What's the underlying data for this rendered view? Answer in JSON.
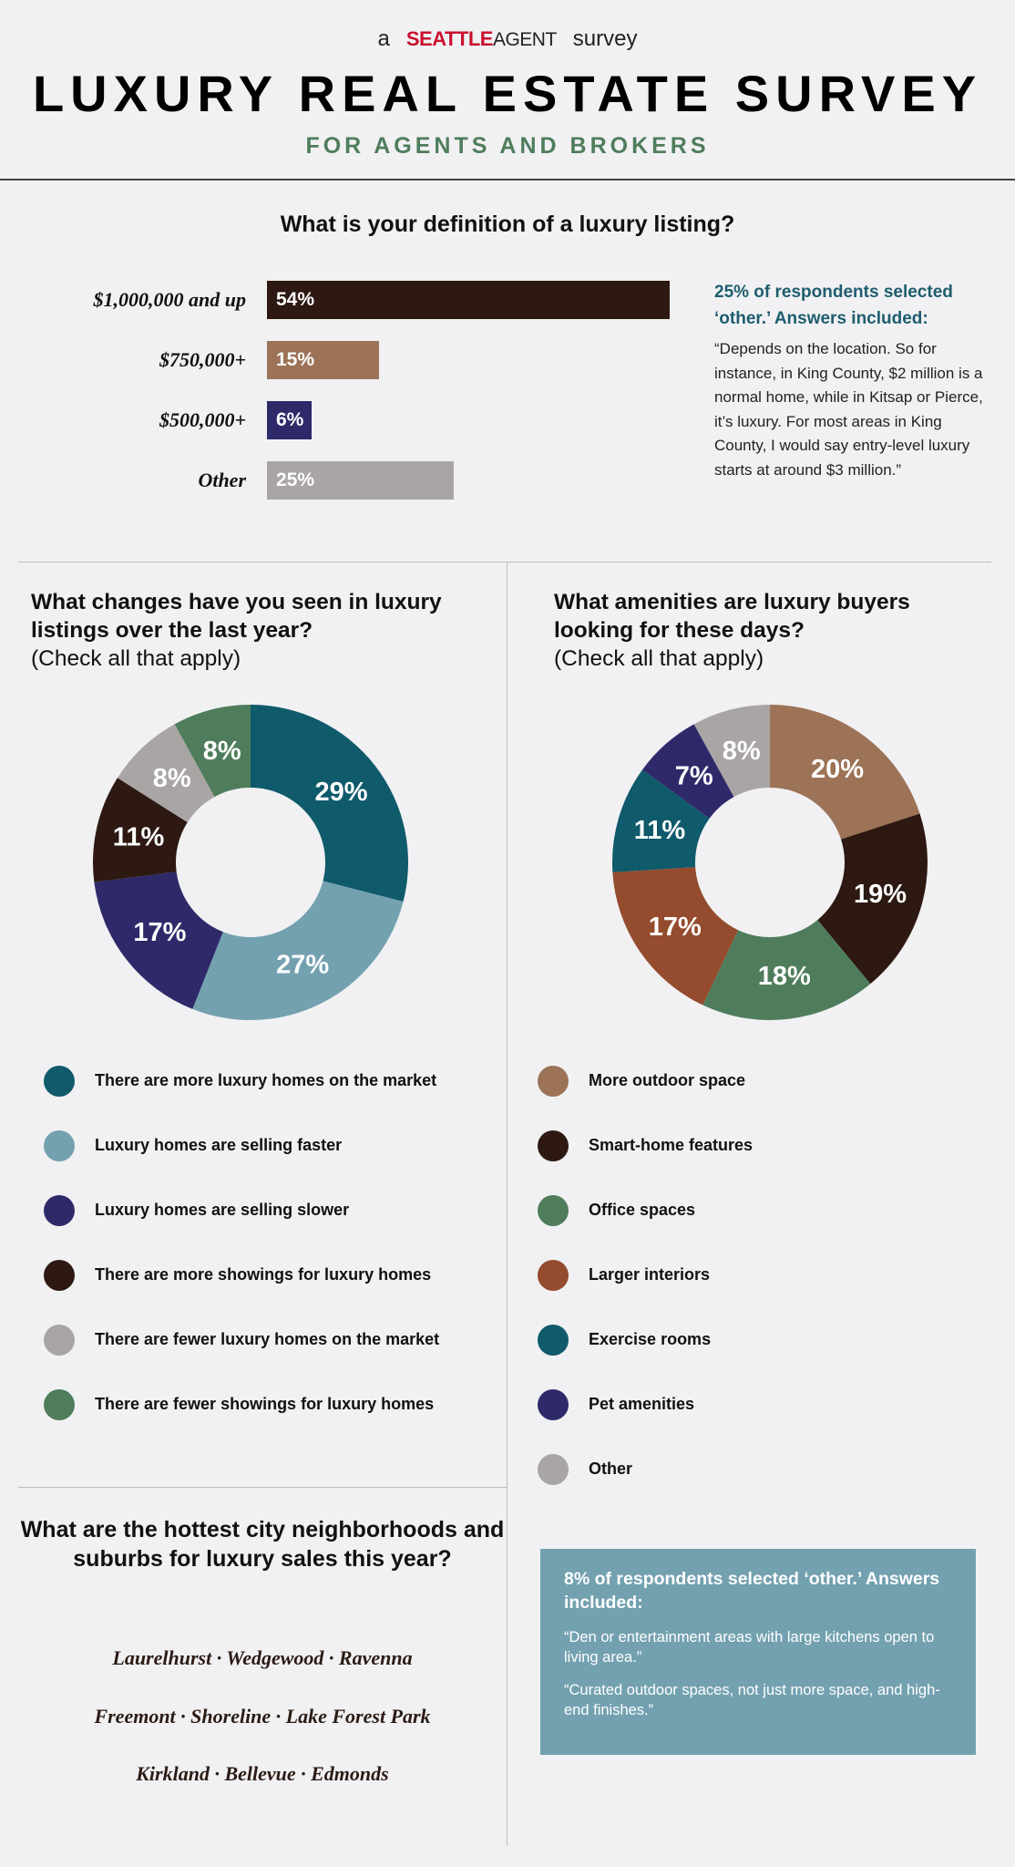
{
  "header": {
    "brand_prefix": "a",
    "brand_logo_main": "SEATTLE",
    "brand_logo_agent": "AGENT",
    "brand_suffix": "survey",
    "title": "LUXURY REAL ESTATE SURVEY",
    "subtitle": "FOR AGENTS AND BROKERS"
  },
  "q1": {
    "question": "What is your definition of a luxury listing?",
    "note_headline": "25% of respondents selected ‘other.’ Answers included:",
    "note_quote": "“Depends on the location. So for instance, in King County, $2 million is a normal home, while in Kitsap or Pierce, it’s luxury. For most areas in King County, I would say entry-level luxury starts at around $3 million.”"
  },
  "q2": {
    "question": "What changes have you seen in luxury listings over the last year?",
    "check": "(Check all that apply)"
  },
  "q3": {
    "question": "What amenities are luxury buyers looking for these days?",
    "check": "(Check all that apply)",
    "other_headline": "8% of respondents selected ‘other.’ Answers included:",
    "other_quote_1": "“Den or entertainment areas with large kitchens open to living area.”",
    "other_quote_2": "“Curated outdoor spaces, not just more space, and high-end finishes.”"
  },
  "q4": {
    "question": "What are the hottest city neighborhoods and suburbs for luxury sales this year?",
    "rows": [
      "Laurelhurst · Wedgewood · Ravenna",
      "Freemont  · Shoreline · Lake Forest Park",
      "Kirkland · Bellevue · Edmonds"
    ]
  },
  "chart_data": [
    {
      "type": "bar",
      "orientation": "horizontal",
      "categories": [
        "$1,000,000 and up",
        "$750,000+",
        "$500,000+",
        "Other"
      ],
      "values": [
        54,
        15,
        6,
        25
      ],
      "labels": [
        "54%",
        "15%",
        "6%",
        "25%"
      ],
      "colors": [
        "#2d1912",
        "#9d7357",
        "#2e2a6a",
        "#a9a5a4"
      ],
      "xlim": [
        0,
        54
      ]
    },
    {
      "type": "pie",
      "style": "donut",
      "categories": [
        "There are more luxury homes on the market",
        "Luxury homes are selling faster",
        "Luxury homes are selling slower",
        "There are more showings for luxury homes",
        "There are fewer luxury homes on the market",
        "There are fewer showings for luxury homes"
      ],
      "values": [
        29,
        27,
        17,
        11,
        8,
        8
      ],
      "labels": [
        "29%",
        "27%",
        "17%",
        "11%",
        "8%",
        "8%"
      ],
      "colors": [
        "#0f5a6b",
        "#73a1b0",
        "#2e2a6a",
        "#2d1912",
        "#a9a5a4",
        "#4f7d5c"
      ]
    },
    {
      "type": "pie",
      "style": "donut",
      "categories": [
        "More outdoor space",
        "Smart-home features",
        "Office spaces",
        "Larger interiors",
        "Exercise rooms",
        "Pet amenities",
        "Other"
      ],
      "values": [
        20,
        19,
        18,
        17,
        11,
        7,
        8
      ],
      "labels": [
        "20%",
        "19%",
        "18%",
        "17%",
        "11%",
        "7%",
        "8%"
      ],
      "colors": [
        "#9d7357",
        "#2d1912",
        "#4f7d5c",
        "#944b2e",
        "#0f5a6b",
        "#2e2a6a",
        "#a9a5a4"
      ]
    }
  ]
}
